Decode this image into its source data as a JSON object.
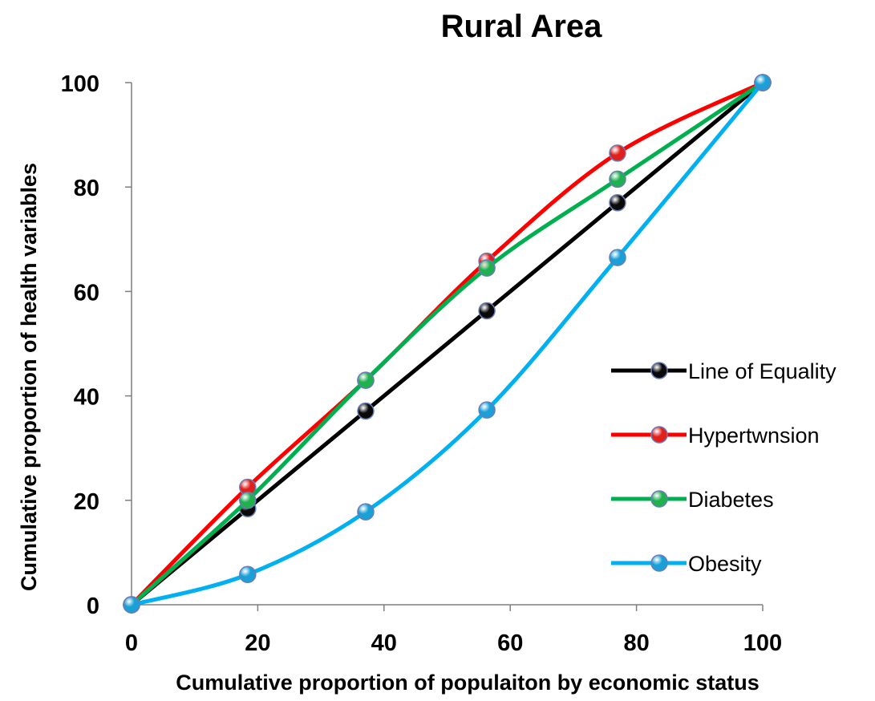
{
  "chart_data": {
    "type": "line",
    "title": "Rural Area",
    "xlabel": "Cumulative proportion of populaiton by economic status",
    "ylabel": "Cumulative proportion of health variables",
    "xlim": [
      0,
      100
    ],
    "ylim": [
      0,
      100
    ],
    "x_ticks": [
      "0",
      "20",
      "40",
      "60",
      "80",
      "100"
    ],
    "y_ticks": [
      "0",
      "20",
      "40",
      "60",
      "80",
      "100"
    ],
    "grid": false,
    "legend_position": "right",
    "series": [
      {
        "name": "Line of Equality",
        "color": "#000000",
        "marker_color": "#0a0a0a",
        "x": [
          0,
          18.4,
          37.1,
          56.3,
          77.0,
          100
        ],
        "y": [
          0,
          18.4,
          37.1,
          56.3,
          77.0,
          100
        ]
      },
      {
        "name": "Hypertwnsion",
        "color": "#ff0000",
        "marker_color": "#e0201c",
        "x": [
          0,
          18.4,
          37.1,
          56.3,
          77.0,
          100
        ],
        "y": [
          0,
          22.5,
          43.0,
          65.8,
          86.5,
          100
        ]
      },
      {
        "name": "Diabetes",
        "color": "#00b050",
        "marker_color": "#1fb04f",
        "x": [
          0,
          18.4,
          37.1,
          56.3,
          77.0,
          100
        ],
        "y": [
          0,
          20.0,
          43.0,
          64.5,
          81.5,
          100
        ]
      },
      {
        "name": "Obesity",
        "color": "#00b0f0",
        "marker_color": "#1a9fd6",
        "x": [
          0,
          18.4,
          37.1,
          56.3,
          77.0,
          100
        ],
        "y": [
          0,
          5.8,
          17.8,
          37.3,
          66.5,
          100
        ]
      }
    ]
  }
}
